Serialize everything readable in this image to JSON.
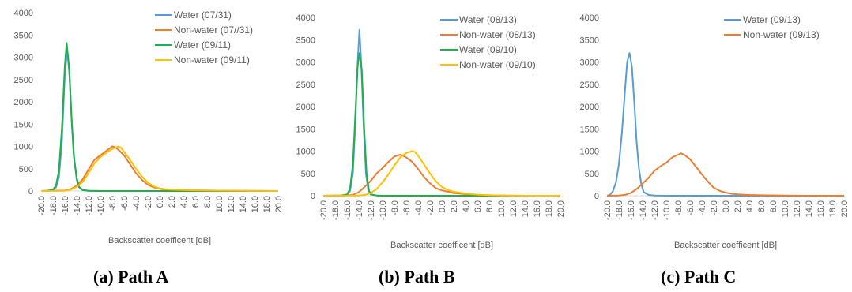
{
  "chart_data": [
    {
      "type": "line",
      "caption": "(a) Path A",
      "xlabel": "Backscatter coefficent [dB]",
      "ylabel": "",
      "xlim": [
        -20,
        20
      ],
      "ylim": [
        0,
        4000
      ],
      "x_ticks": [
        "-20.0",
        "-18.0",
        "-16.0",
        "-14.0",
        "-12.0",
        "-10.0",
        "-8.0",
        "-6.0",
        "-4.0",
        "-2.0",
        "0.0",
        "2.0",
        "4.0",
        "6.0",
        "8.0",
        "10.0",
        "12.0",
        "14.0",
        "16.0",
        "18.0",
        "20.0"
      ],
      "y_ticks": [
        "0",
        "500",
        "1000",
        "1500",
        "2000",
        "2500",
        "3000",
        "3500",
        "4000"
      ],
      "legend_position": "top-right",
      "grid": false,
      "series": [
        {
          "name": "Water (07/31)",
          "color": "#5B9BD5",
          "points": [
            [
              -20,
              0
            ],
            [
              -19,
              5
            ],
            [
              -18,
              20
            ],
            [
              -17.5,
              80
            ],
            [
              -17,
              300
            ],
            [
              -16.5,
              1100
            ],
            [
              -16,
              2600
            ],
            [
              -15.6,
              3150
            ],
            [
              -15.2,
              2600
            ],
            [
              -14.8,
              1500
            ],
            [
              -14.4,
              700
            ],
            [
              -14,
              250
            ],
            [
              -13.6,
              80
            ],
            [
              -13,
              20
            ],
            [
              -12,
              5
            ],
            [
              -10,
              0
            ],
            [
              20,
              0
            ]
          ]
        },
        {
          "name": "Non-water (07//31)",
          "color": "#ED7D31",
          "points": [
            [
              -20,
              0
            ],
            [
              -16,
              10
            ],
            [
              -15,
              40
            ],
            [
              -14,
              120
            ],
            [
              -13,
              260
            ],
            [
              -12,
              480
            ],
            [
              -11,
              700
            ],
            [
              -10,
              800
            ],
            [
              -9,
              900
            ],
            [
              -8,
              1000
            ],
            [
              -7.5,
              980
            ],
            [
              -7,
              930
            ],
            [
              -6,
              800
            ],
            [
              -5,
              600
            ],
            [
              -4,
              400
            ],
            [
              -3,
              250
            ],
            [
              -2,
              140
            ],
            [
              -1,
              80
            ],
            [
              0,
              50
            ],
            [
              1,
              30
            ],
            [
              2,
              25
            ],
            [
              4,
              20
            ],
            [
              6,
              15
            ],
            [
              10,
              8
            ],
            [
              14,
              4
            ],
            [
              20,
              0
            ]
          ]
        },
        {
          "name": "Water (09/11)",
          "color": "#1EB04B",
          "points": [
            [
              -20,
              0
            ],
            [
              -19,
              5
            ],
            [
              -18,
              30
            ],
            [
              -17.5,
              120
            ],
            [
              -17,
              450
            ],
            [
              -16.5,
              1400
            ],
            [
              -16,
              2800
            ],
            [
              -15.7,
              3320
            ],
            [
              -15.3,
              2800
            ],
            [
              -14.9,
              1700
            ],
            [
              -14.5,
              800
            ],
            [
              -14,
              300
            ],
            [
              -13.6,
              90
            ],
            [
              -13,
              25
            ],
            [
              -12,
              5
            ],
            [
              -10,
              0
            ],
            [
              20,
              0
            ]
          ]
        },
        {
          "name": "Non-water (09/11)",
          "color": "#FFC000",
          "points": [
            [
              -20,
              0
            ],
            [
              -16,
              5
            ],
            [
              -15,
              30
            ],
            [
              -14,
              90
            ],
            [
              -13,
              200
            ],
            [
              -12,
              400
            ],
            [
              -11,
              620
            ],
            [
              -10,
              760
            ],
            [
              -9,
              860
            ],
            [
              -8,
              940
            ],
            [
              -7,
              1000
            ],
            [
              -6.5,
              970
            ],
            [
              -6,
              880
            ],
            [
              -5,
              700
            ],
            [
              -4,
              500
            ],
            [
              -3,
              330
            ],
            [
              -2,
              190
            ],
            [
              -1,
              100
            ],
            [
              0,
              60
            ],
            [
              1,
              40
            ],
            [
              2,
              30
            ],
            [
              4,
              22
            ],
            [
              6,
              16
            ],
            [
              10,
              8
            ],
            [
              14,
              4
            ],
            [
              20,
              0
            ]
          ]
        }
      ]
    },
    {
      "type": "line",
      "caption": "(b) Path B",
      "xlabel": "Backscatter coefficent [dB]",
      "ylabel": "",
      "xlim": [
        -20,
        20
      ],
      "ylim": [
        0,
        4000
      ],
      "x_ticks": [
        "-20.0",
        "-18.0",
        "-16.0",
        "-14.0",
        "-12.0",
        "-10.0",
        "-8.0",
        "-6.0",
        "-4.0",
        "-2.0",
        "0.0",
        "2.0",
        "4.0",
        "6.0",
        "8.0",
        "10.0",
        "12.0",
        "14.0",
        "16.0",
        "18.0",
        "20.0"
      ],
      "y_ticks": [
        "0",
        "500",
        "1000",
        "1500",
        "2000",
        "2500",
        "3000",
        "3500",
        "4000"
      ],
      "legend_position": "top-right",
      "grid": false,
      "series": [
        {
          "name": "Water (08/13)",
          "color": "#5B9BD5",
          "points": [
            [
              -20,
              0
            ],
            [
              -17,
              5
            ],
            [
              -16,
              20
            ],
            [
              -15.5,
              100
            ],
            [
              -15,
              500
            ],
            [
              -14.6,
              1600
            ],
            [
              -14.2,
              3000
            ],
            [
              -13.9,
              3720
            ],
            [
              -13.6,
              3000
            ],
            [
              -13.2,
              1600
            ],
            [
              -12.8,
              500
            ],
            [
              -12.4,
              120
            ],
            [
              -12,
              30
            ],
            [
              -11,
              5
            ],
            [
              -10,
              0
            ],
            [
              20,
              0
            ]
          ]
        },
        {
          "name": "Non-water (08/13)",
          "color": "#ED7D31",
          "points": [
            [
              -20,
              0
            ],
            [
              -16,
              5
            ],
            [
              -15,
              20
            ],
            [
              -14,
              80
            ],
            [
              -13,
              200
            ],
            [
              -12,
              330
            ],
            [
              -11,
              500
            ],
            [
              -10,
              620
            ],
            [
              -9,
              760
            ],
            [
              -8,
              880
            ],
            [
              -7,
              920
            ],
            [
              -6,
              860
            ],
            [
              -5,
              760
            ],
            [
              -4,
              600
            ],
            [
              -3,
              420
            ],
            [
              -2,
              280
            ],
            [
              -1,
              170
            ],
            [
              0,
              120
            ],
            [
              1,
              90
            ],
            [
              2,
              60
            ],
            [
              4,
              35
            ],
            [
              6,
              18
            ],
            [
              8,
              8
            ],
            [
              10,
              3
            ],
            [
              14,
              0
            ],
            [
              20,
              0
            ]
          ]
        },
        {
          "name": "Water (09/10)",
          "color": "#1EB04B",
          "points": [
            [
              -20,
              0
            ],
            [
              -17,
              5
            ],
            [
              -16,
              30
            ],
            [
              -15.5,
              150
            ],
            [
              -15,
              700
            ],
            [
              -14.6,
              1800
            ],
            [
              -14.2,
              2900
            ],
            [
              -13.9,
              3200
            ],
            [
              -13.5,
              2800
            ],
            [
              -13.1,
              1500
            ],
            [
              -12.7,
              500
            ],
            [
              -12.3,
              120
            ],
            [
              -12,
              30
            ],
            [
              -11,
              5
            ],
            [
              -10,
              0
            ],
            [
              20,
              0
            ]
          ]
        },
        {
          "name": "Non-water (09/10)",
          "color": "#FFC000",
          "points": [
            [
              -20,
              0
            ],
            [
              -14,
              5
            ],
            [
              -13,
              20
            ],
            [
              -12,
              60
            ],
            [
              -11,
              150
            ],
            [
              -10,
              300
            ],
            [
              -9,
              480
            ],
            [
              -8,
              680
            ],
            [
              -7,
              860
            ],
            [
              -6,
              960
            ],
            [
              -5,
              1000
            ],
            [
              -4.5,
              980
            ],
            [
              -4,
              900
            ],
            [
              -3,
              700
            ],
            [
              -2,
              500
            ],
            [
              -1,
              320
            ],
            [
              0,
              200
            ],
            [
              1,
              130
            ],
            [
              2,
              90
            ],
            [
              4,
              50
            ],
            [
              6,
              25
            ],
            [
              8,
              12
            ],
            [
              10,
              5
            ],
            [
              14,
              0
            ],
            [
              20,
              0
            ]
          ]
        }
      ]
    },
    {
      "type": "line",
      "caption": "(c) Path C",
      "xlabel": "Backscatter coefficent [dB]",
      "ylabel": "",
      "xlim": [
        -20,
        20
      ],
      "ylim": [
        0,
        4000
      ],
      "x_ticks": [
        "-20.0",
        "-18.0",
        "-16.0",
        "-14.0",
        "-12.0",
        "-10.0",
        "-8.0",
        "-6.0",
        "-4.0",
        "-2.0",
        "0.0",
        "2.0",
        "4.0",
        "6.0",
        "8.0",
        "10.0",
        "12.0",
        "14.0",
        "16.0",
        "18.0",
        "20.0"
      ],
      "y_ticks": [
        "0",
        "500",
        "1000",
        "1500",
        "2000",
        "2500",
        "3000",
        "3500",
        "4000"
      ],
      "legend_position": "top-right",
      "grid": false,
      "series": [
        {
          "name": "Water (09/13)",
          "color": "#5B9BD5",
          "points": [
            [
              -20,
              0
            ],
            [
              -19.5,
              20
            ],
            [
              -19,
              100
            ],
            [
              -18.5,
              300
            ],
            [
              -18,
              700
            ],
            [
              -17.5,
              1400
            ],
            [
              -17,
              2300
            ],
            [
              -16.6,
              3000
            ],
            [
              -16.2,
              3200
            ],
            [
              -15.8,
              2900
            ],
            [
              -15.4,
              2100
            ],
            [
              -15,
              1200
            ],
            [
              -14.6,
              600
            ],
            [
              -14.2,
              250
            ],
            [
              -13.8,
              80
            ],
            [
              -13,
              20
            ],
            [
              -12,
              5
            ],
            [
              -10,
              0
            ],
            [
              20,
              0
            ]
          ]
        },
        {
          "name": "Non-water (09/13)",
          "color": "#ED7D31",
          "points": [
            [
              -20,
              0
            ],
            [
              -18,
              5
            ],
            [
              -17,
              20
            ],
            [
              -16,
              60
            ],
            [
              -15,
              150
            ],
            [
              -14,
              270
            ],
            [
              -13,
              400
            ],
            [
              -12,
              560
            ],
            [
              -11,
              660
            ],
            [
              -10,
              740
            ],
            [
              -9,
              860
            ],
            [
              -8,
              920
            ],
            [
              -7.5,
              950
            ],
            [
              -7,
              920
            ],
            [
              -6,
              820
            ],
            [
              -5,
              650
            ],
            [
              -4,
              480
            ],
            [
              -3,
              320
            ],
            [
              -2,
              180
            ],
            [
              -1,
              110
            ],
            [
              0,
              70
            ],
            [
              1,
              45
            ],
            [
              2,
              30
            ],
            [
              4,
              18
            ],
            [
              6,
              10
            ],
            [
              10,
              4
            ],
            [
              14,
              0
            ],
            [
              20,
              0
            ]
          ]
        }
      ]
    }
  ]
}
